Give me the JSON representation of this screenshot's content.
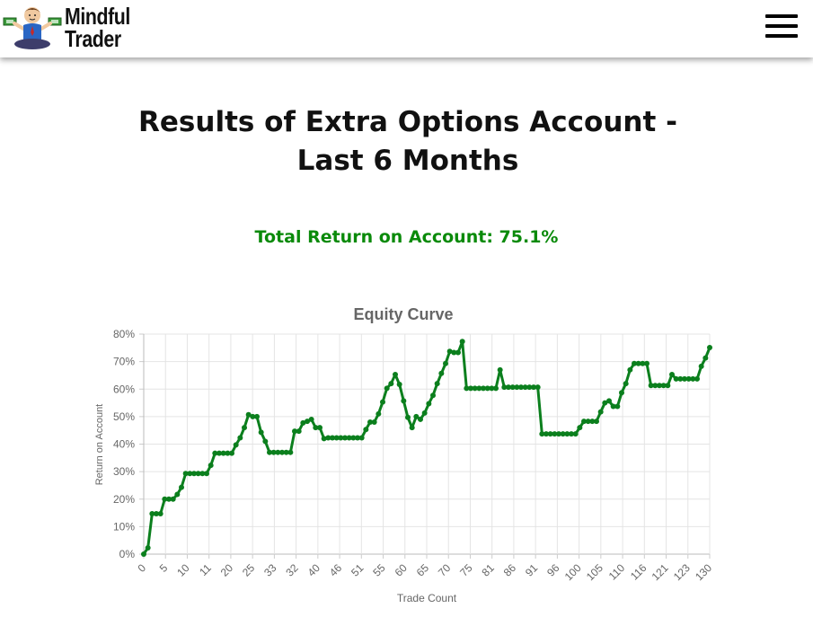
{
  "header": {
    "logo_line1": "Mindful",
    "logo_line2": "Trader",
    "menu_icon": "hamburger-menu-icon"
  },
  "page": {
    "title": "Results of Extra Options Account - Last 6 Months",
    "total_return": "Total Return on Account: 75.1%"
  },
  "colors": {
    "accent_green": "#0a8a0a",
    "line_green": "#0b7f1d"
  },
  "chart_data": {
    "type": "line",
    "title": "Equity Curve",
    "xlabel": "Trade Count",
    "ylabel": "Return on Account",
    "ylim": [
      0,
      80
    ],
    "y_ticks": [
      "0%",
      "10%",
      "20%",
      "30%",
      "40%",
      "50%",
      "60%",
      "70%",
      "80%"
    ],
    "x_ticks": [
      "0",
      "5",
      "10",
      "11",
      "20",
      "25",
      "33",
      "32",
      "40",
      "46",
      "51",
      "55",
      "60",
      "65",
      "70",
      "75",
      "81",
      "86",
      "91",
      "96",
      "100",
      "105",
      "110",
      "116",
      "121",
      "123",
      "130"
    ],
    "grid": true,
    "series": [
      {
        "values": [
          0,
          2.3,
          14.7,
          14.7,
          14.7,
          20,
          20,
          20,
          21.7,
          24.3,
          29.3,
          29.3,
          29.3,
          29.3,
          29.3,
          29.3,
          32.3,
          36.7,
          36.7,
          36.7,
          36.7,
          36.7,
          39.7,
          42.3,
          46,
          50.7,
          50,
          50,
          44.3,
          41,
          37,
          37,
          37,
          37,
          37,
          37,
          44.7,
          44.7,
          47.7,
          48.3,
          49,
          46,
          46,
          42,
          42.3,
          42.3,
          42.3,
          42.3,
          42.3,
          42.3,
          42.3,
          42.3,
          42.3,
          45.3,
          48,
          48,
          51,
          55.3,
          60.3,
          62,
          65.3,
          61.7,
          55.7,
          49.7,
          46,
          50,
          49,
          51.3,
          54.7,
          57.7,
          62,
          65.7,
          69.3,
          73.7,
          73.3,
          73.3,
          77.3,
          60.3,
          60.3,
          60.3,
          60.3,
          60.3,
          60.3,
          60.3,
          60.3,
          67,
          60.7,
          60.7,
          60.7,
          60.7,
          60.7,
          60.7,
          60.7,
          60.7,
          60.7,
          43.7,
          43.7,
          43.7,
          43.7,
          43.7,
          43.7,
          43.7,
          43.7,
          43.7,
          46,
          48.3,
          48.3,
          48.3,
          48.3,
          51.7,
          55,
          55.7,
          53.7,
          53.7,
          58.7,
          62,
          67,
          69.3,
          69.3,
          69.3,
          69.3,
          61.3,
          61.3,
          61.3,
          61.3,
          61.3,
          65.3,
          63.7,
          63.7,
          63.7,
          63.7,
          63.7,
          63.7,
          68.3,
          71.3,
          75.1
        ]
      }
    ]
  }
}
